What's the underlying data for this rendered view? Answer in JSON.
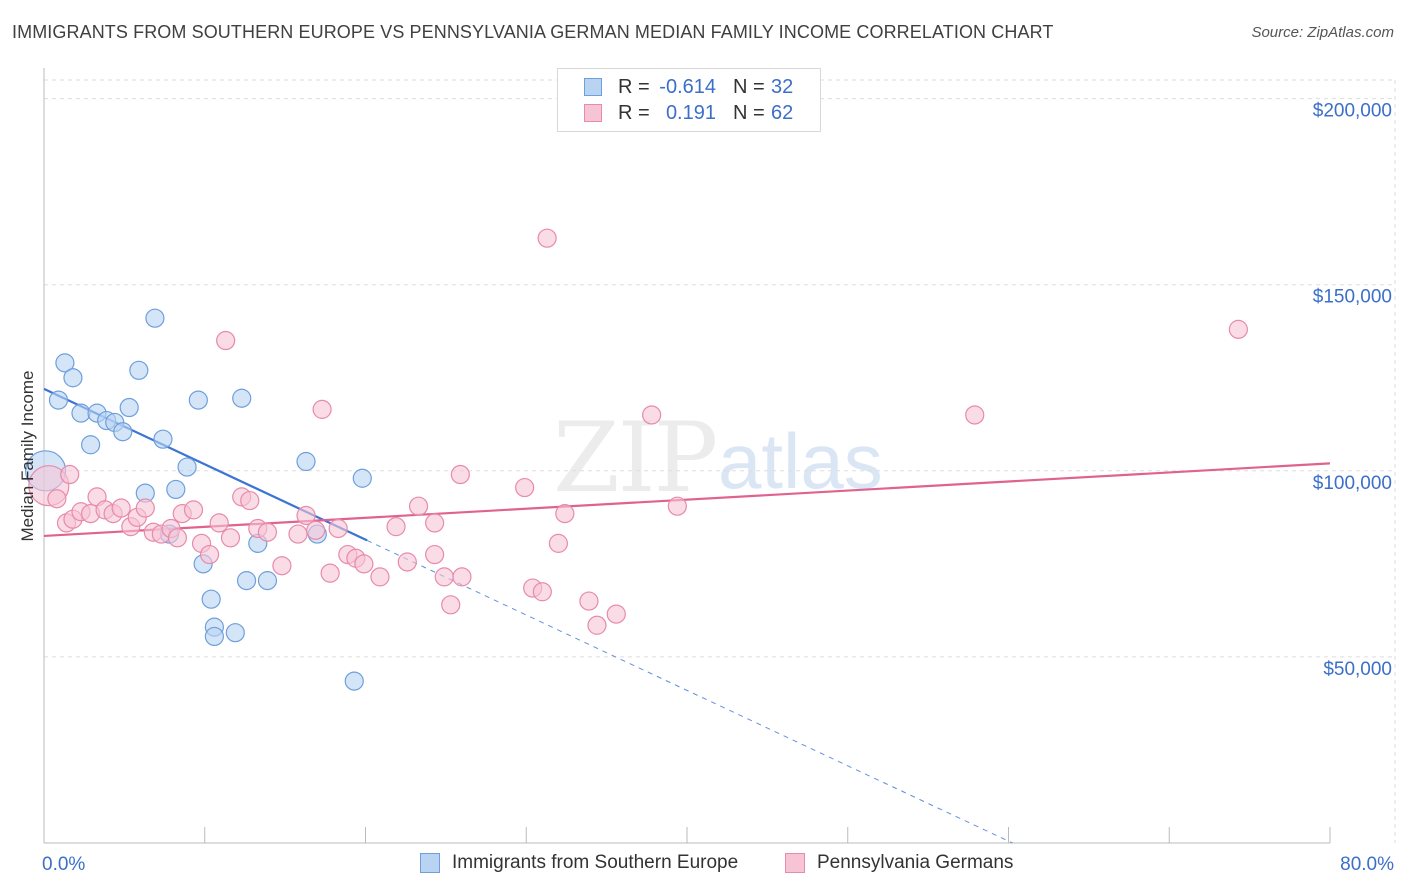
{
  "title": "IMMIGRANTS FROM SOUTHERN EUROPE VS PENNSYLVANIA GERMAN MEDIAN FAMILY INCOME CORRELATION CHART",
  "source": "Source: ZipAtlas.com",
  "watermark": {
    "zip": "ZIP",
    "atlas": "atlas"
  },
  "colors": {
    "blue_fill": "#b9d3f3",
    "blue_stroke": "#6e9fdc",
    "blue_line": "#3b74d4",
    "pink_fill": "#f6c4d5",
    "pink_stroke": "#e88aab",
    "pink_line": "#e0628e",
    "axis_label": "#3b6fc8",
    "grid": "#dddddd"
  },
  "legend": {
    "rows": [
      {
        "r_label": "R =",
        "r_value": "-0.614",
        "n_label": "N =",
        "n_value": "32"
      },
      {
        "r_label": "R =",
        "r_value": "0.191",
        "n_label": "N =",
        "n_value": "62"
      }
    ]
  },
  "bottom_legend": [
    "Immigrants from Southern Europe",
    "Pennsylvania Germans"
  ],
  "chart_data": {
    "type": "scatter",
    "title": "IMMIGRANTS FROM SOUTHERN EUROPE VS PENNSYLVANIA GERMAN MEDIAN FAMILY INCOME CORRELATION CHART",
    "xlabel": "",
    "ylabel": "Median Family Income",
    "xlim": [
      0,
      80
    ],
    "ylim": [
      0,
      205000
    ],
    "x_tick_labels": [
      "0.0%",
      "80.0%"
    ],
    "y_ticks": [
      50000,
      100000,
      150000,
      200000
    ],
    "y_tick_labels": [
      "$50,000",
      "$100,000",
      "$150,000",
      "$200,000"
    ],
    "series": [
      {
        "name": "Immigrants from Southern Europe",
        "points": [
          [
            0.1,
            100000,
            "large"
          ],
          [
            0.9,
            119000
          ],
          [
            1.3,
            129000
          ],
          [
            1.8,
            125000
          ],
          [
            2.3,
            115500
          ],
          [
            2.9,
            107000
          ],
          [
            3.3,
            115500
          ],
          [
            3.9,
            113500
          ],
          [
            4.4,
            113000
          ],
          [
            4.9,
            110500
          ],
          [
            5.3,
            117000
          ],
          [
            5.9,
            127000
          ],
          [
            6.3,
            94000
          ],
          [
            6.9,
            141000
          ],
          [
            7.4,
            108500
          ],
          [
            7.8,
            83000
          ],
          [
            8.2,
            95000
          ],
          [
            8.9,
            101000
          ],
          [
            9.6,
            119000
          ],
          [
            9.9,
            75000
          ],
          [
            10.4,
            65500
          ],
          [
            10.6,
            58000
          ],
          [
            10.6,
            55500
          ],
          [
            11.9,
            56500
          ],
          [
            12.3,
            119500
          ],
          [
            12.6,
            70500
          ],
          [
            13.3,
            80500
          ],
          [
            13.9,
            70500
          ],
          [
            16.3,
            102500
          ],
          [
            17.0,
            83000
          ],
          [
            19.3,
            43500
          ],
          [
            19.8,
            98000
          ]
        ]
      },
      {
        "name": "Pennsylvania Germans",
        "points": [
          [
            0.3,
            96000,
            "large"
          ],
          [
            0.8,
            92500
          ],
          [
            1.4,
            86000
          ],
          [
            1.8,
            87000
          ],
          [
            2.3,
            89000
          ],
          [
            2.9,
            88500
          ],
          [
            3.3,
            93000
          ],
          [
            3.8,
            89500
          ],
          [
            4.3,
            88500
          ],
          [
            4.8,
            90000
          ],
          [
            5.4,
            85000
          ],
          [
            5.8,
            87500
          ],
          [
            6.3,
            90000
          ],
          [
            6.8,
            83500
          ],
          [
            7.3,
            83000
          ],
          [
            7.9,
            84500
          ],
          [
            8.3,
            82000
          ],
          [
            8.6,
            88500
          ],
          [
            9.3,
            89500
          ],
          [
            9.8,
            80500
          ],
          [
            10.3,
            77500
          ],
          [
            10.9,
            86000
          ],
          [
            11.3,
            135000
          ],
          [
            11.6,
            82000
          ],
          [
            12.3,
            93000
          ],
          [
            12.8,
            92000
          ],
          [
            13.3,
            84500
          ],
          [
            13.9,
            83500
          ],
          [
            14.8,
            74500
          ],
          [
            15.8,
            83000
          ],
          [
            16.3,
            88000
          ],
          [
            16.9,
            84000
          ],
          [
            17.3,
            116500
          ],
          [
            17.8,
            72500
          ],
          [
            18.3,
            84500
          ],
          [
            18.9,
            77500
          ],
          [
            19.4,
            76500
          ],
          [
            19.9,
            75000
          ],
          [
            20.9,
            71500
          ],
          [
            21.9,
            85000
          ],
          [
            22.6,
            75500
          ],
          [
            23.3,
            90500
          ],
          [
            24.3,
            77500
          ],
          [
            24.3,
            86000
          ],
          [
            24.9,
            71500
          ],
          [
            25.3,
            64000
          ],
          [
            25.9,
            99000
          ],
          [
            26.0,
            71500
          ],
          [
            29.9,
            95500
          ],
          [
            30.4,
            68500
          ],
          [
            31.0,
            67500
          ],
          [
            31.3,
            162500
          ],
          [
            32.0,
            80500
          ],
          [
            32.4,
            88500
          ],
          [
            33.9,
            65000
          ],
          [
            34.4,
            58500
          ],
          [
            35.6,
            61500
          ],
          [
            37.8,
            115000
          ],
          [
            39.4,
            90500
          ],
          [
            57.9,
            115000
          ],
          [
            74.3,
            138000
          ],
          [
            1.6,
            99000
          ]
        ]
      }
    ],
    "trend_lines": [
      {
        "series": "Immigrants from Southern Europe",
        "x_start": 0,
        "y_start": 122000,
        "x_solid_end": 20.1,
        "x_dash_end": 80,
        "y_end": -40000,
        "style": "solid-then-dashed"
      },
      {
        "series": "Pennsylvania Germans",
        "x_start": 0,
        "y_start": 82500,
        "x_end": 80,
        "y_end": 102000,
        "style": "solid"
      }
    ],
    "grid": true,
    "legend_position": "top-center"
  }
}
